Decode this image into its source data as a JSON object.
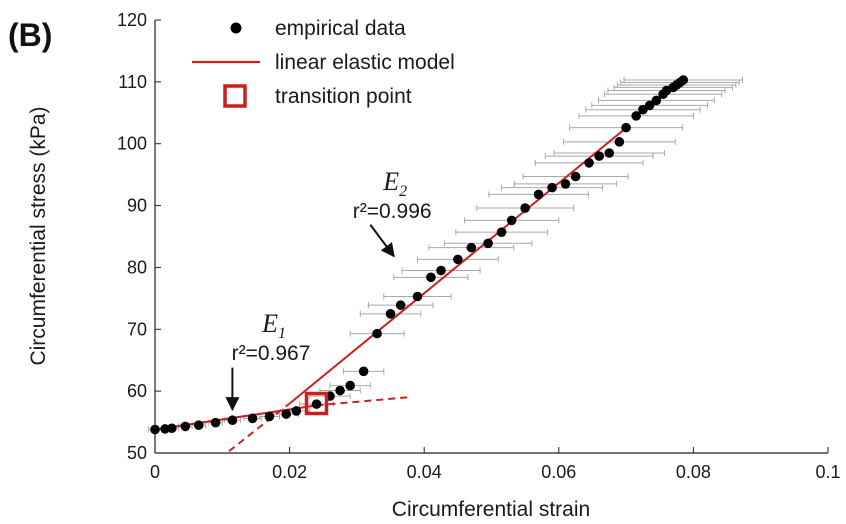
{
  "chart_data": {
    "type": "scatter",
    "panel_label": "(B)",
    "xlabel": "Circumferential strain",
    "ylabel": "Circumferential stress (kPa)",
    "xlim": [
      0,
      0.1
    ],
    "ylim": [
      50,
      120
    ],
    "xticks": [
      0,
      0.02,
      0.04,
      0.06,
      0.08,
      0.1
    ],
    "xtick_labels": [
      "0",
      "0.02",
      "0.04",
      "0.06",
      "0.08",
      "0.1"
    ],
    "yticks": [
      50,
      60,
      70,
      80,
      90,
      100,
      110,
      120
    ],
    "ytick_labels": [
      "50",
      "60",
      "70",
      "80",
      "90",
      "100",
      "110",
      "120"
    ],
    "legend": {
      "position": "top-left",
      "entries": [
        {
          "label": "empirical data",
          "marker": "dot",
          "color": "#000000"
        },
        {
          "label": "linear elastic model",
          "marker": "line",
          "color": "#cc1f1f"
        },
        {
          "label": "transition point",
          "marker": "square",
          "color": "#cc1f1f"
        }
      ]
    },
    "series": [
      {
        "name": "empirical data",
        "x": [
          0.0,
          0.0015,
          0.0025,
          0.0045,
          0.0065,
          0.009,
          0.0115,
          0.0145,
          0.017,
          0.0195,
          0.021,
          0.024,
          0.026,
          0.0275,
          0.029,
          0.031,
          0.033,
          0.035,
          0.0365,
          0.039,
          0.041,
          0.0425,
          0.045,
          0.047,
          0.0495,
          0.0515,
          0.053,
          0.055,
          0.057,
          0.059,
          0.061,
          0.0625,
          0.0645,
          0.066,
          0.0675,
          0.069,
          0.07,
          0.0715,
          0.0725,
          0.0735,
          0.0745,
          0.0755,
          0.076,
          0.077,
          0.0775,
          0.078,
          0.0785
        ],
        "y": [
          53.8,
          53.9,
          54.0,
          54.3,
          54.5,
          54.9,
          55.3,
          55.6,
          55.9,
          56.3,
          56.8,
          57.9,
          59.2,
          60.1,
          60.9,
          63.2,
          69.3,
          72.5,
          73.9,
          75.3,
          78.4,
          79.5,
          81.3,
          83.2,
          83.9,
          85.7,
          87.6,
          89.6,
          91.8,
          92.9,
          93.5,
          94.7,
          96.9,
          98.0,
          98.5,
          100.3,
          102.6,
          104.5,
          105.5,
          106.2,
          107.0,
          108.0,
          108.6,
          109.1,
          109.5,
          109.9,
          110.3
        ],
        "xerr": [
          0.001,
          0.001,
          0.001,
          0.001,
          0.001,
          0.001,
          0.0012,
          0.0013,
          0.0015,
          0.0018,
          0.002,
          0.0025,
          0.003,
          0.003,
          0.003,
          0.003,
          0.004,
          0.0045,
          0.0048,
          0.005,
          0.0055,
          0.0058,
          0.006,
          0.0063,
          0.0065,
          0.0068,
          0.007,
          0.0072,
          0.0074,
          0.0075,
          0.0076,
          0.0078,
          0.008,
          0.008,
          0.0082,
          0.0083,
          0.0084,
          0.0085,
          0.0085,
          0.0086,
          0.0086,
          0.0087,
          0.0087,
          0.0088,
          0.0088,
          0.0088,
          0.0088
        ]
      }
    ],
    "fit_lines": [
      {
        "name": "E1 fit",
        "color": "#cc1f1f",
        "segments": [
          {
            "x": [
              0.0,
              0.024
            ],
            "y": [
              53.8,
              57.7
            ],
            "style": "solid"
          },
          {
            "x": [
              0.024,
              0.0375
            ],
            "y": [
              57.7,
              59.0
            ],
            "style": "dashed"
          }
        ]
      },
      {
        "name": "E2 fit",
        "color": "#cc1f1f",
        "segments": [
          {
            "x": [
              0.011,
              0.02
            ],
            "y": [
              50.3,
              58.0
            ],
            "style": "dashed"
          },
          {
            "x": [
              0.02,
              0.0705
            ],
            "y": [
              58.0,
              103.0
            ],
            "style": "solid"
          }
        ]
      }
    ],
    "transition_point": {
      "x": 0.024,
      "y": 58.0,
      "color": "#cc1f1f"
    },
    "annotations": [
      {
        "id": "E2",
        "symbol": "E",
        "subscript": "2",
        "r2_text": "r²=0.996",
        "anchor": [
          0.029,
          88.0
        ],
        "arrow_from": [
          0.032,
          86.9
        ],
        "arrow_to": [
          0.0355,
          81.8
        ]
      },
      {
        "id": "E1",
        "symbol": "E",
        "subscript": "1",
        "r2_text": "r²=0.967",
        "anchor": [
          0.011,
          65.0
        ],
        "arrow_from": [
          0.0115,
          63.8
        ],
        "arrow_to": [
          0.0115,
          57.0
        ]
      }
    ]
  }
}
